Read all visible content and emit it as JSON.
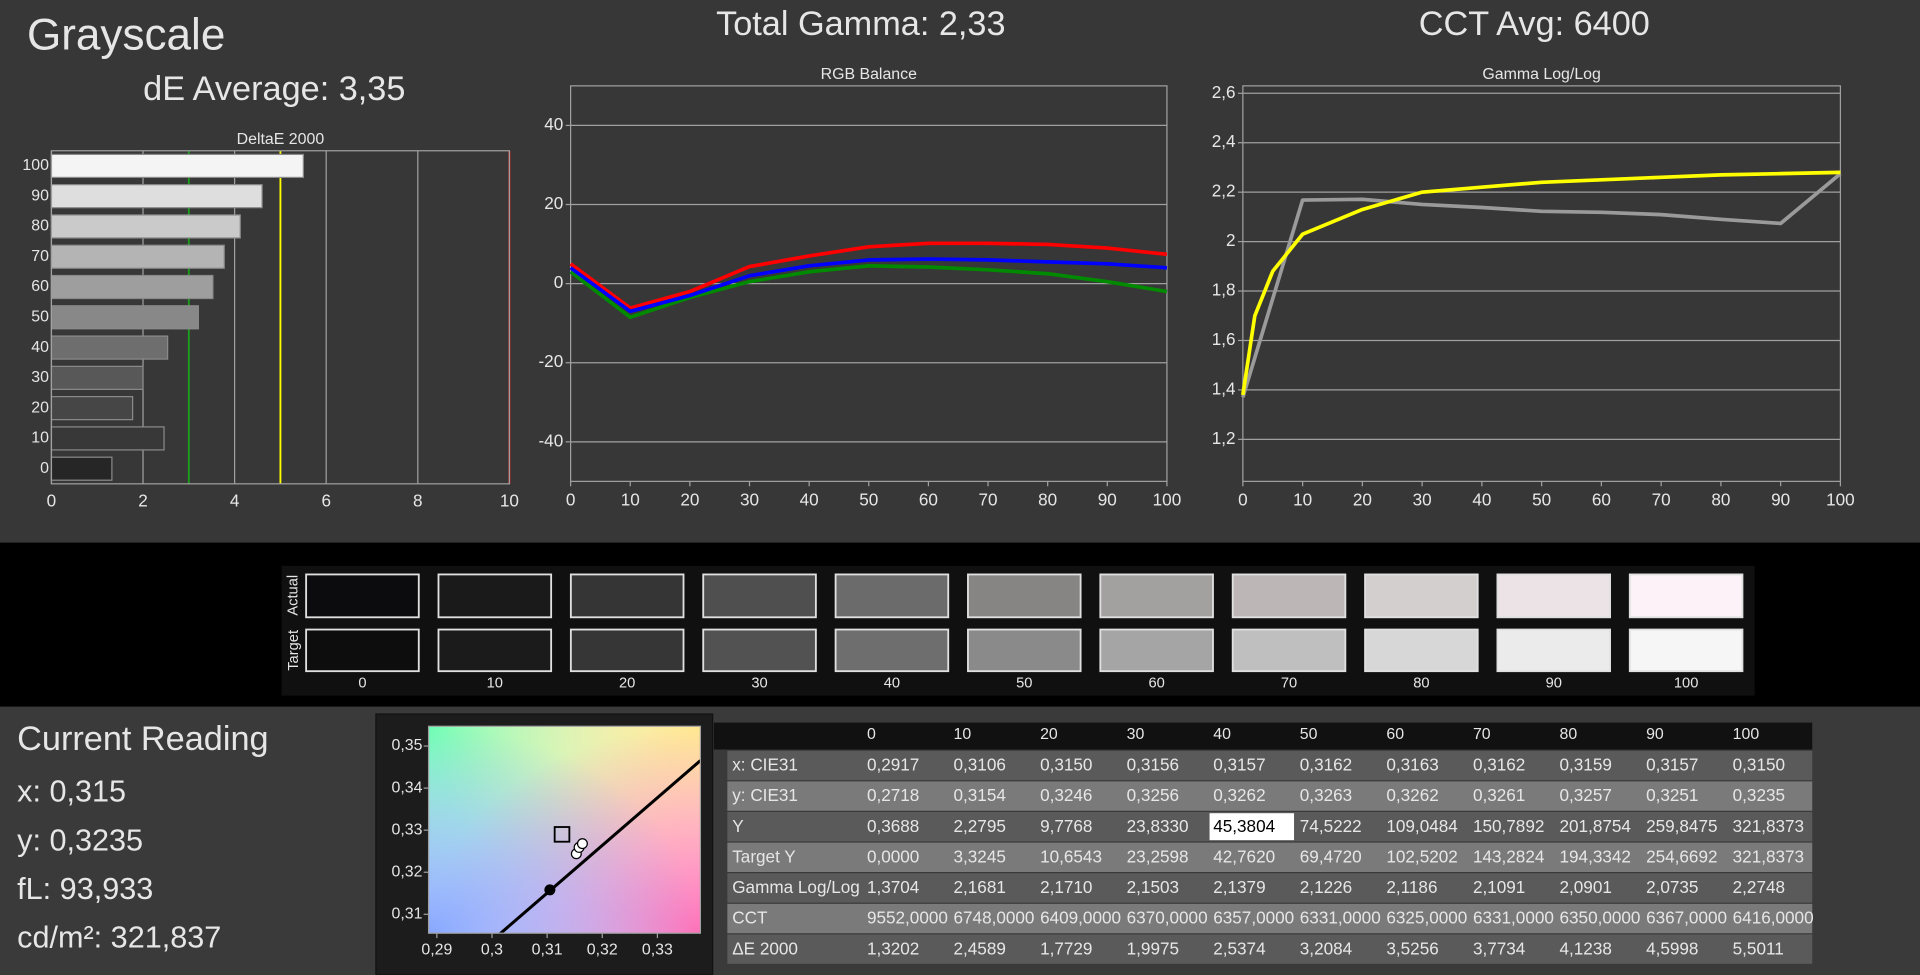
{
  "header": {
    "title": "Grayscale",
    "de_average": "dE Average: 3,35",
    "total_gamma": "Total Gamma: 2,33",
    "cct_avg": "CCT Avg: 6400"
  },
  "chart_data": [
    {
      "type": "hbar",
      "title": "DeltaE 2000",
      "categories": [
        "100",
        "90",
        "80",
        "70",
        "60",
        "50",
        "40",
        "30",
        "20",
        "10",
        "0"
      ],
      "values": [
        5.5011,
        4.5998,
        4.1238,
        3.7734,
        3.5256,
        3.2084,
        2.5374,
        1.9975,
        1.7729,
        2.4589,
        1.3202
      ],
      "colors": [
        "#f4f4f4",
        "#dedede",
        "#cacaca",
        "#b4b4b4",
        "#9e9e9e",
        "#888888",
        "#6e6e6e",
        "#585858",
        "#464646",
        "#383838",
        "#262626"
      ],
      "xlim": [
        0,
        10
      ],
      "xticks": [
        0,
        2,
        4,
        6,
        8,
        10
      ],
      "grid": true,
      "reference_lines": [
        {
          "value": 3,
          "color": "#1aa01a"
        },
        {
          "value": 5,
          "color": "#ffff00"
        },
        {
          "value": 10,
          "color": "#ff2020"
        }
      ]
    },
    {
      "type": "line",
      "title": "RGB Balance",
      "x": [
        0,
        10,
        20,
        30,
        40,
        50,
        60,
        70,
        80,
        90,
        100
      ],
      "series": [
        {
          "color": "#ff0000",
          "values": [
            5,
            -6.2,
            -2,
            4.3,
            7,
            9.3,
            10.2,
            10.2,
            9.9,
            9,
            7.4
          ]
        },
        {
          "color": "#008a00",
          "values": [
            3,
            -8.5,
            -3.5,
            0.5,
            3,
            4.5,
            4.2,
            3.5,
            2.5,
            0.5,
            -2
          ]
        },
        {
          "color": "#0000ff",
          "values": [
            4,
            -7,
            -3,
            2,
            4.5,
            6,
            6.2,
            6,
            5.5,
            5,
            4
          ]
        }
      ],
      "xlim": [
        0,
        100
      ],
      "ylim": [
        -50,
        50
      ],
      "xticks": [
        0,
        10,
        20,
        30,
        40,
        50,
        60,
        70,
        80,
        90,
        100
      ],
      "yticks": [
        -40,
        -20,
        0,
        20,
        40
      ],
      "grid": true
    },
    {
      "type": "line",
      "title": "Gamma Log/Log",
      "series": [
        {
          "color": "#9a9a9a",
          "x": [
            0,
            10,
            20,
            30,
            40,
            50,
            60,
            70,
            80,
            90,
            100
          ],
          "values": [
            1.3704,
            2.1681,
            2.171,
            2.1503,
            2.1379,
            2.1226,
            2.1186,
            2.1091,
            2.0901,
            2.0735,
            2.2748
          ]
        },
        {
          "color": "#ffff00",
          "x": [
            0,
            2,
            5,
            10,
            20,
            30,
            40,
            50,
            60,
            70,
            80,
            90,
            100
          ],
          "values": [
            1.38,
            1.7,
            1.88,
            2.03,
            2.13,
            2.2,
            2.22,
            2.24,
            2.25,
            2.26,
            2.27,
            2.275,
            2.28
          ]
        }
      ],
      "xlim": [
        0,
        100
      ],
      "ylim": [
        1.03,
        2.63
      ],
      "xticks": [
        0,
        10,
        20,
        30,
        40,
        50,
        60,
        70,
        80,
        90,
        100
      ],
      "yticks": [
        {
          "value": 1.2,
          "label": "1,2"
        },
        {
          "value": 1.4,
          "label": "1,4"
        },
        {
          "value": 1.6,
          "label": "1,6"
        },
        {
          "value": 1.8,
          "label": "1,8"
        },
        2,
        {
          "value": 2.2,
          "label": "2,2"
        },
        {
          "value": 2.4,
          "label": "2,4"
        },
        {
          "value": 2.6,
          "label": "2,6"
        }
      ],
      "grid": true
    },
    {
      "type": "scatter",
      "series": [
        {
          "marker": "square",
          "color": "#000000",
          "x": [
            0.3127
          ],
          "values": [
            0.329
          ]
        },
        {
          "marker": "dot",
          "color": "#000000",
          "x": [
            0.3105
          ],
          "values": [
            0.3158
          ]
        },
        {
          "marker": "circle",
          "color": "#000000",
          "x": [
            0.3153,
            0.3158,
            0.3164
          ],
          "values": [
            0.3244,
            0.3259,
            0.3268
          ]
        }
      ],
      "xlim": [
        0.2885,
        0.3378
      ],
      "ylim": [
        0.3055,
        0.3547
      ],
      "xticks": [
        {
          "value": 0.29,
          "label": "0,29"
        },
        {
          "value": 0.3,
          "label": "0,3"
        },
        {
          "value": 0.31,
          "label": "0,31"
        },
        {
          "value": 0.32,
          "label": "0,32"
        },
        {
          "value": 0.33,
          "label": "0,33"
        }
      ],
      "yticks": [
        {
          "value": 0.31,
          "label": "0,31"
        },
        {
          "value": 0.32,
          "label": "0,32"
        },
        {
          "value": 0.33,
          "label": "0,33"
        },
        {
          "value": 0.34,
          "label": "0,34"
        },
        {
          "value": 0.35,
          "label": "0,35"
        }
      ]
    }
  ],
  "swatches": {
    "actual_label": "Actual",
    "target_label": "Target",
    "levels": [
      "0",
      "10",
      "20",
      "30",
      "40",
      "50",
      "60",
      "70",
      "80",
      "90",
      "100"
    ],
    "actual_colors": [
      "#0c0c0e",
      "#1a1a1b",
      "#353535",
      "#4f4f4f",
      "#6b6b6b",
      "#878584",
      "#a3a0a0",
      "#bdb6b6",
      "#d4cfcf",
      "#ece3e6",
      "#fcf2f7"
    ],
    "target_colors": [
      "#0d0d0d",
      "#1b1b1b",
      "#363636",
      "#525252",
      "#6e6e6e",
      "#8a8a8a",
      "#a5a5a5",
      "#bfbfbf",
      "#d7d7d7",
      "#ebebeb",
      "#f6f6f6"
    ]
  },
  "current_reading": {
    "title": "Current Reading",
    "lines": [
      "x: 0,315",
      "y: 0,3235",
      "fL: 93,933",
      "cd/m²: 321,837"
    ]
  },
  "table": {
    "columns": [
      "0",
      "10",
      "20",
      "30",
      "40",
      "50",
      "60",
      "70",
      "80",
      "90",
      "100"
    ],
    "rows": [
      {
        "label": "x: CIE31",
        "cells": [
          "0,2917",
          "0,3106",
          "0,3150",
          "0,3156",
          "0,3157",
          "0,3162",
          "0,3163",
          "0,3162",
          "0,3159",
          "0,3157",
          "0,3150"
        ]
      },
      {
        "label": "y: CIE31",
        "cells": [
          "0,2718",
          "0,3154",
          "0,3246",
          "0,3256",
          "0,3262",
          "0,3263",
          "0,3262",
          "0,3261",
          "0,3257",
          "0,3251",
          "0,3235"
        ]
      },
      {
        "label": "Y",
        "cells": [
          "0,3688",
          "2,2795",
          "9,7768",
          "23,8330",
          "45,3804",
          "74,5222",
          "109,0484",
          "150,7892",
          "201,8754",
          "259,8475",
          "321,8373"
        ]
      },
      {
        "label": "Target Y",
        "cells": [
          "0,0000",
          "3,3245",
          "10,6543",
          "23,2598",
          "42,7620",
          "69,4720",
          "102,5202",
          "143,2824",
          "194,3342",
          "254,6692",
          "321,8373"
        ]
      },
      {
        "label": "Gamma Log/Log",
        "cells": [
          "1,3704",
          "2,1681",
          "2,1710",
          "2,1503",
          "2,1379",
          "2,1226",
          "2,1186",
          "2,1091",
          "2,0901",
          "2,0735",
          "2,2748"
        ]
      },
      {
        "label": "CCT",
        "cells": [
          "9552,0000",
          "6748,0000",
          "6409,0000",
          "6370,0000",
          "6357,0000",
          "6331,0000",
          "6325,0000",
          "6331,0000",
          "6350,0000",
          "6367,0000",
          "6416,0000"
        ]
      },
      {
        "label": "ΔE 2000",
        "cells": [
          "1,3202",
          "2,4589",
          "1,7729",
          "1,9975",
          "2,5374",
          "3,2084",
          "3,5256",
          "3,7734",
          "4,1238",
          "4,5998",
          "5,5011"
        ]
      }
    ],
    "selected_cell": [
      2,
      4
    ]
  }
}
